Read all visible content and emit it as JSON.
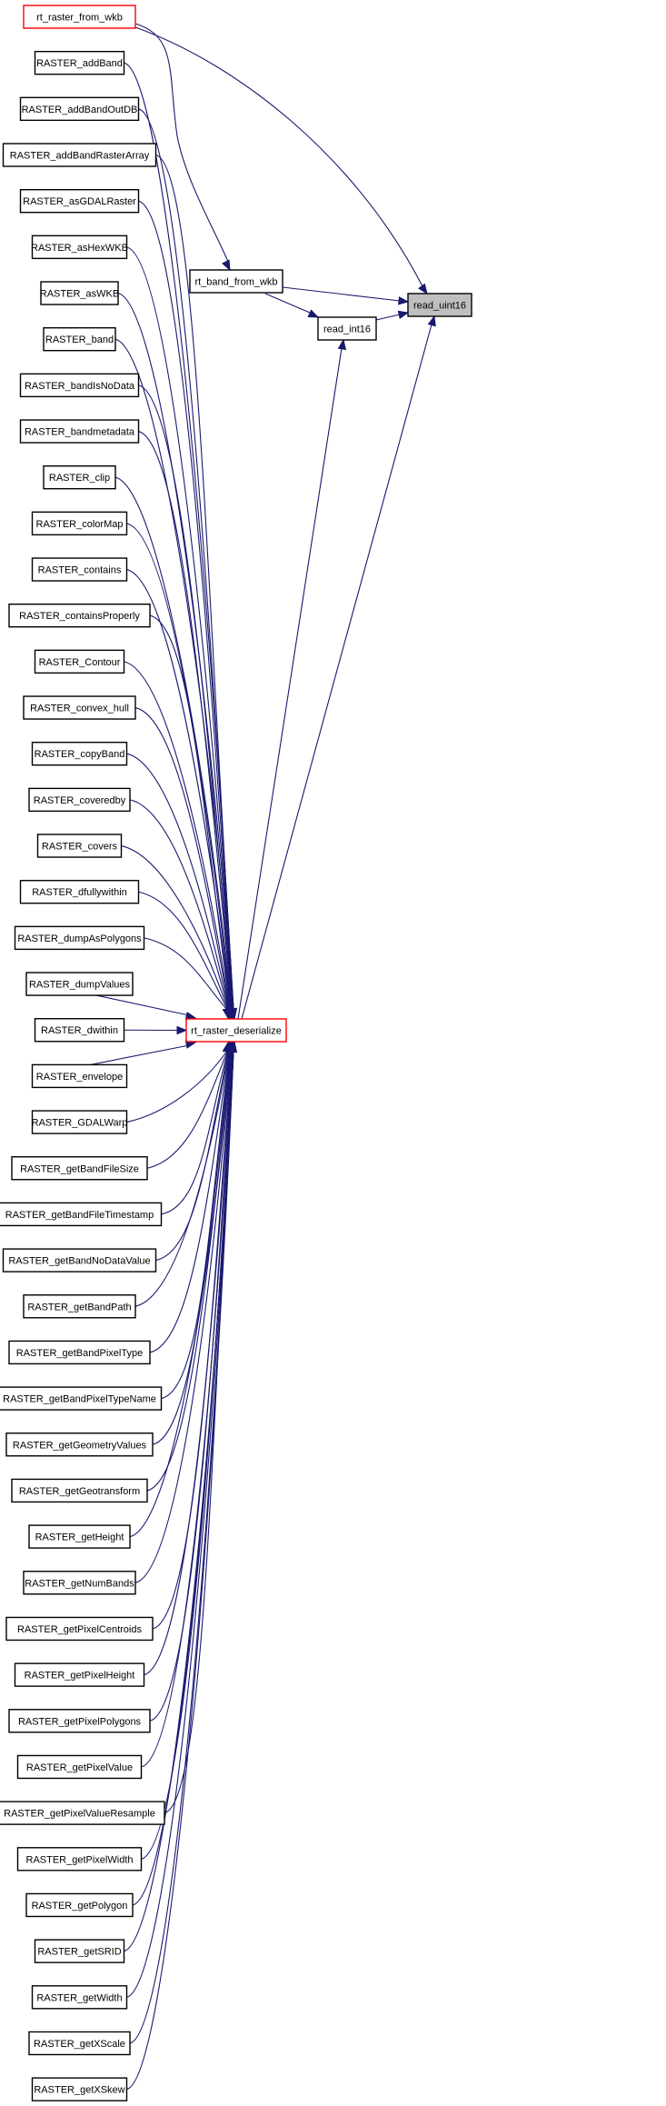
{
  "colors": {
    "edge": "#191970",
    "highlight_border": "#ff0000",
    "current_fill": "#bfbfbf"
  },
  "current_node": "read_uint16",
  "center_nodes": [
    {
      "id": "rt_band_from_wkb",
      "label": "rt_band_from_wkb",
      "highlighted": false
    },
    {
      "id": "read_int16",
      "label": "read_int16",
      "highlighted": false
    },
    {
      "id": "read_uint16",
      "label": "read_uint16",
      "highlighted": false,
      "current": true
    },
    {
      "id": "rt_raster_deserialize",
      "label": "rt_raster_deserialize",
      "highlighted": true
    }
  ],
  "left_nodes": [
    {
      "label": "rt_raster_from_wkb",
      "highlighted": true
    },
    {
      "label": "RASTER_addBand"
    },
    {
      "label": "RASTER_addBandOutDB"
    },
    {
      "label": "RASTER_addBandRasterArray"
    },
    {
      "label": "RASTER_asGDALRaster"
    },
    {
      "label": "RASTER_asHexWKB"
    },
    {
      "label": "RASTER_asWKB"
    },
    {
      "label": "RASTER_band"
    },
    {
      "label": "RASTER_bandIsNoData"
    },
    {
      "label": "RASTER_bandmetadata"
    },
    {
      "label": "RASTER_clip"
    },
    {
      "label": "RASTER_colorMap"
    },
    {
      "label": "RASTER_contains"
    },
    {
      "label": "RASTER_containsProperly"
    },
    {
      "label": "RASTER_Contour"
    },
    {
      "label": "RASTER_convex_hull"
    },
    {
      "label": "RASTER_copyBand"
    },
    {
      "label": "RASTER_coveredby"
    },
    {
      "label": "RASTER_covers"
    },
    {
      "label": "RASTER_dfullywithin"
    },
    {
      "label": "RASTER_dumpAsPolygons"
    },
    {
      "label": "RASTER_dumpValues"
    },
    {
      "label": "RASTER_dwithin"
    },
    {
      "label": "RASTER_envelope"
    },
    {
      "label": "RASTER_GDALWarp"
    },
    {
      "label": "RASTER_getBandFileSize"
    },
    {
      "label": "RASTER_getBandFileTimestamp"
    },
    {
      "label": "RASTER_getBandNoDataValue"
    },
    {
      "label": "RASTER_getBandPath"
    },
    {
      "label": "RASTER_getBandPixelType"
    },
    {
      "label": "RASTER_getBandPixelTypeName"
    },
    {
      "label": "RASTER_getGeometryValues"
    },
    {
      "label": "RASTER_getGeotransform"
    },
    {
      "label": "RASTER_getHeight"
    },
    {
      "label": "RASTER_getNumBands"
    },
    {
      "label": "RASTER_getPixelCentroids"
    },
    {
      "label": "RASTER_getPixelHeight"
    },
    {
      "label": "RASTER_getPixelPolygons"
    },
    {
      "label": "RASTER_getPixelValue"
    },
    {
      "label": "RASTER_getPixelValueResample"
    },
    {
      "label": "RASTER_getPixelWidth"
    },
    {
      "label": "RASTER_getPolygon"
    },
    {
      "label": "RASTER_getSRID"
    },
    {
      "label": "RASTER_getWidth"
    },
    {
      "label": "RASTER_getXScale"
    },
    {
      "label": "RASTER_getXSkew"
    }
  ],
  "edges_note_free": true,
  "edges": [
    [
      "rt_raster_from_wkb",
      "rt_band_from_wkb"
    ],
    [
      "rt_raster_from_wkb",
      "read_uint16"
    ],
    [
      "rt_band_from_wkb",
      "read_uint16"
    ],
    [
      "rt_band_from_wkb",
      "read_int16"
    ],
    [
      "read_int16",
      "read_uint16"
    ],
    [
      "rt_raster_deserialize",
      "read_int16"
    ],
    [
      "rt_raster_deserialize",
      "read_uint16"
    ]
  ],
  "all_raster_nodes_call": "rt_raster_deserialize"
}
